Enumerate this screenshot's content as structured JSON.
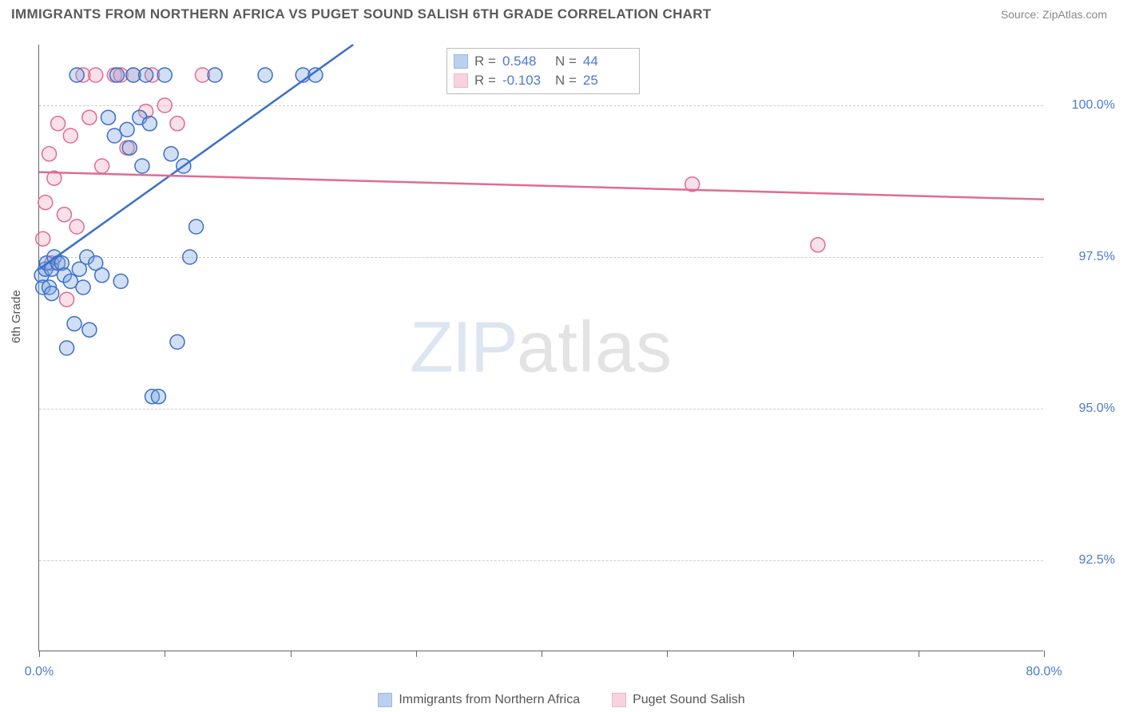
{
  "title": "IMMIGRANTS FROM NORTHERN AFRICA VS PUGET SOUND SALISH 6TH GRADE CORRELATION CHART",
  "source_prefix": "Source: ",
  "source_name": "ZipAtlas.com",
  "ylabel": "6th Grade",
  "watermark_a": "ZIP",
  "watermark_b": "atlas",
  "chart": {
    "type": "scatter-with-regression",
    "xlim": [
      0,
      80
    ],
    "ylim": [
      91,
      101
    ],
    "y_gridlines": [
      92.5,
      95.0,
      97.5,
      100.0
    ],
    "y_tick_labels": [
      "92.5%",
      "95.0%",
      "97.5%",
      "100.0%"
    ],
    "x_ticks": [
      0,
      10,
      20,
      30,
      40,
      50,
      60,
      70,
      80
    ],
    "x_tick_labels_shown": {
      "0": "0.0%",
      "80": "80.0%"
    },
    "marker_radius": 9,
    "marker_stroke_width": 1.5,
    "marker_fill_opacity": 0.35,
    "line_width": 2.5,
    "background_color": "#ffffff",
    "grid_color": "#cccccc",
    "axis_color": "#666666",
    "tick_label_color": "#4a7bd0"
  },
  "series": [
    {
      "name": "Immigrants from Northern Africa",
      "color_stroke": "#3b6fc9",
      "color_fill": "#7aa3e0",
      "R": "0.548",
      "N": "44",
      "regression": {
        "x1": 0,
        "y1": 97.3,
        "x2": 25,
        "y2": 101.0
      },
      "points": [
        [
          0.2,
          97.2
        ],
        [
          0.3,
          97.0
        ],
        [
          0.5,
          97.3
        ],
        [
          0.6,
          97.4
        ],
        [
          0.8,
          97.0
        ],
        [
          1.0,
          97.3
        ],
        [
          1.2,
          97.5
        ],
        [
          1.0,
          96.9
        ],
        [
          1.5,
          97.4
        ],
        [
          1.8,
          97.4
        ],
        [
          2.0,
          97.2
        ],
        [
          2.2,
          96.0
        ],
        [
          2.5,
          97.1
        ],
        [
          2.8,
          96.4
        ],
        [
          3.0,
          100.5
        ],
        [
          3.2,
          97.3
        ],
        [
          3.5,
          97.0
        ],
        [
          3.8,
          97.5
        ],
        [
          4.0,
          96.3
        ],
        [
          4.5,
          97.4
        ],
        [
          5.0,
          97.2
        ],
        [
          5.5,
          99.8
        ],
        [
          6.0,
          99.5
        ],
        [
          6.2,
          100.5
        ],
        [
          6.5,
          97.1
        ],
        [
          7.0,
          99.6
        ],
        [
          7.2,
          99.3
        ],
        [
          7.5,
          100.5
        ],
        [
          8.0,
          99.8
        ],
        [
          8.2,
          99.0
        ],
        [
          8.5,
          100.5
        ],
        [
          8.8,
          99.7
        ],
        [
          9.0,
          95.2
        ],
        [
          9.5,
          95.2
        ],
        [
          10.0,
          100.5
        ],
        [
          10.5,
          99.2
        ],
        [
          11.0,
          96.1
        ],
        [
          11.5,
          99.0
        ],
        [
          12.0,
          97.5
        ],
        [
          12.5,
          98.0
        ],
        [
          14.0,
          100.5
        ],
        [
          18.0,
          100.5
        ],
        [
          21.0,
          100.5
        ],
        [
          22.0,
          100.5
        ]
      ]
    },
    {
      "name": "Puget Sound Salish",
      "color_stroke": "#e06b94",
      "color_fill": "#f0a8c0",
      "R": "-0.103",
      "N": "25",
      "regression": {
        "x1": 0,
        "y1": 98.9,
        "x2": 80,
        "y2": 98.45
      },
      "points": [
        [
          0.3,
          97.8
        ],
        [
          0.5,
          98.4
        ],
        [
          0.8,
          99.2
        ],
        [
          1.0,
          97.4
        ],
        [
          1.2,
          98.8
        ],
        [
          1.5,
          99.7
        ],
        [
          2.0,
          98.2
        ],
        [
          2.2,
          96.8
        ],
        [
          2.5,
          99.5
        ],
        [
          3.0,
          98.0
        ],
        [
          3.5,
          100.5
        ],
        [
          4.0,
          99.8
        ],
        [
          4.5,
          100.5
        ],
        [
          5.0,
          99.0
        ],
        [
          6.0,
          100.5
        ],
        [
          6.5,
          100.5
        ],
        [
          7.0,
          99.3
        ],
        [
          7.5,
          100.5
        ],
        [
          8.5,
          99.9
        ],
        [
          9.0,
          100.5
        ],
        [
          10.0,
          100.0
        ],
        [
          11.0,
          99.7
        ],
        [
          13.0,
          100.5
        ],
        [
          52.0,
          98.7
        ],
        [
          62.0,
          97.7
        ]
      ]
    }
  ],
  "stats_labels": {
    "R": "R =",
    "N": "N ="
  },
  "bottom_legend": [
    {
      "label": "Immigrants from Northern Africa",
      "stroke": "#3b6fc9",
      "fill": "#7aa3e0"
    },
    {
      "label": "Puget Sound Salish",
      "stroke": "#e06b94",
      "fill": "#f0a8c0"
    }
  ]
}
